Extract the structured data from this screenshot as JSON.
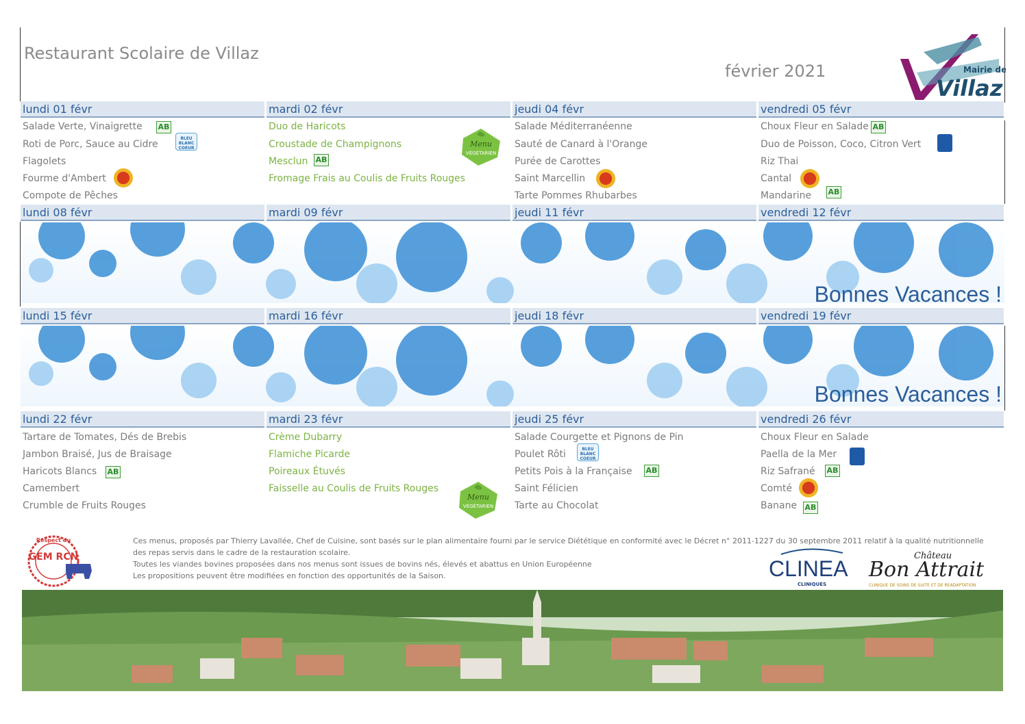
{
  "header": {
    "title": "Restaurant Scolaire de Villaz",
    "month": "février 2021",
    "logo_text": "Mairie de Villaz"
  },
  "weeks": [
    {
      "days": [
        {
          "label": "lundi 01 févr",
          "dishes": [
            "Salade Verte, Vinaigrette",
            "Roti de Porc, Sauce au Cidre",
            "Flagolets",
            "Fourme d'Ambert",
            "Compote de Pêches"
          ]
        },
        {
          "label": "mardi 02 févr",
          "dishes": [
            "Duo de Haricots",
            "Croustade de Champignons",
            "Mesclun",
            "Fromage Frais au Coulis de Fruits Rouges"
          ]
        },
        {
          "label": "jeudi 04 févr",
          "dishes": [
            "Salade Méditerranéenne",
            "Sauté de Canard à l'Orange",
            "Purée de Carottes",
            "Saint Marcellin",
            "Tarte Pommes Rhubarbes"
          ]
        },
        {
          "label": "vendredi 05 févr",
          "dishes": [
            "Choux Fleur en Salade",
            "Duo de Poisson, Coco, Citron Vert",
            "Riz Thai",
            "Cantal",
            "Mandarine"
          ]
        }
      ]
    },
    {
      "days": [
        {
          "label": "lundi 08 févr"
        },
        {
          "label": "mardi 09 févr"
        },
        {
          "label": "jeudi 11 févr"
        },
        {
          "label": "vendredi 12 févr"
        }
      ],
      "banner": "Bonnes Vacances !"
    },
    {
      "days": [
        {
          "label": "lundi 15 févr"
        },
        {
          "label": "mardi 16 févr"
        },
        {
          "label": "jeudi 18 févr"
        },
        {
          "label": "vendredi 19 févr"
        }
      ],
      "banner": "Bonnes Vacances !"
    },
    {
      "days": [
        {
          "label": "lundi 22 févr",
          "dishes": [
            "Tartare de Tomates, Dés de Brebis",
            "Jambon Braisé, Jus de Braisage",
            "Haricots Blancs",
            "Camembert",
            "Crumble de Fruits Rouges"
          ]
        },
        {
          "label": "mardi 23 févr",
          "dishes": [
            "Crème Dubarry",
            "Flamiche Picarde",
            "Poireaux Étuvés",
            "Faisselle au Coulis de Fruits Rouges"
          ]
        },
        {
          "label": "jeudi 25 févr",
          "dishes": [
            "Salade Courgette et Pignons de Pin",
            "Poulet Rôti",
            "Petits Pois à la Française",
            "Saint Félicien",
            "Tarte au Chocolat"
          ]
        },
        {
          "label": "vendredi 26 févr",
          "dishes": [
            "Choux Fleur en Salade",
            "Paella de la Mer",
            "Riz Safrané",
            "Comté",
            "Banane"
          ]
        }
      ]
    }
  ],
  "badges": {
    "ab": "AB",
    "bbc": "BLEU BLANC COEUR",
    "veg": "Menu VÉGÉTARIEN"
  },
  "notes": [
    "Ces menus, proposés par Thierry Lavallée, Chef de Cuisine, sont basés sur le plan alimentaire fourni par le service Diététique en conformité avec le Décret n° 2011-1227 du 30 septembre 2011 relatif à la qualité nutritionnelle",
    "des repas servis dans le cadre de la restauration scolaire.",
    "Toutes les viandes bovines proposées dans nos menus sont issues de bovins nés, élevés et abattus en Union Européenne",
    "Les propositions peuvent être modifiées en fonction des opportunités de la Saison."
  ],
  "footer_logos": {
    "gem": "GEM RCN",
    "gem_ring": "Respect du",
    "clinea": "CLINEA",
    "clinea_sub": "CLINIQUES",
    "bon_attrait": "Bon Attrait",
    "bon_attrait_top": "Château",
    "bon_attrait_sub": "CLINIQUE DE SOINS DE SUITE ET DE READAPTATION"
  },
  "colors": {
    "header_bg": "#dde6f0",
    "header_text": "#2b5d99",
    "vegetarian_text": "#7cb342",
    "dish_text": "#7b7b7b"
  }
}
